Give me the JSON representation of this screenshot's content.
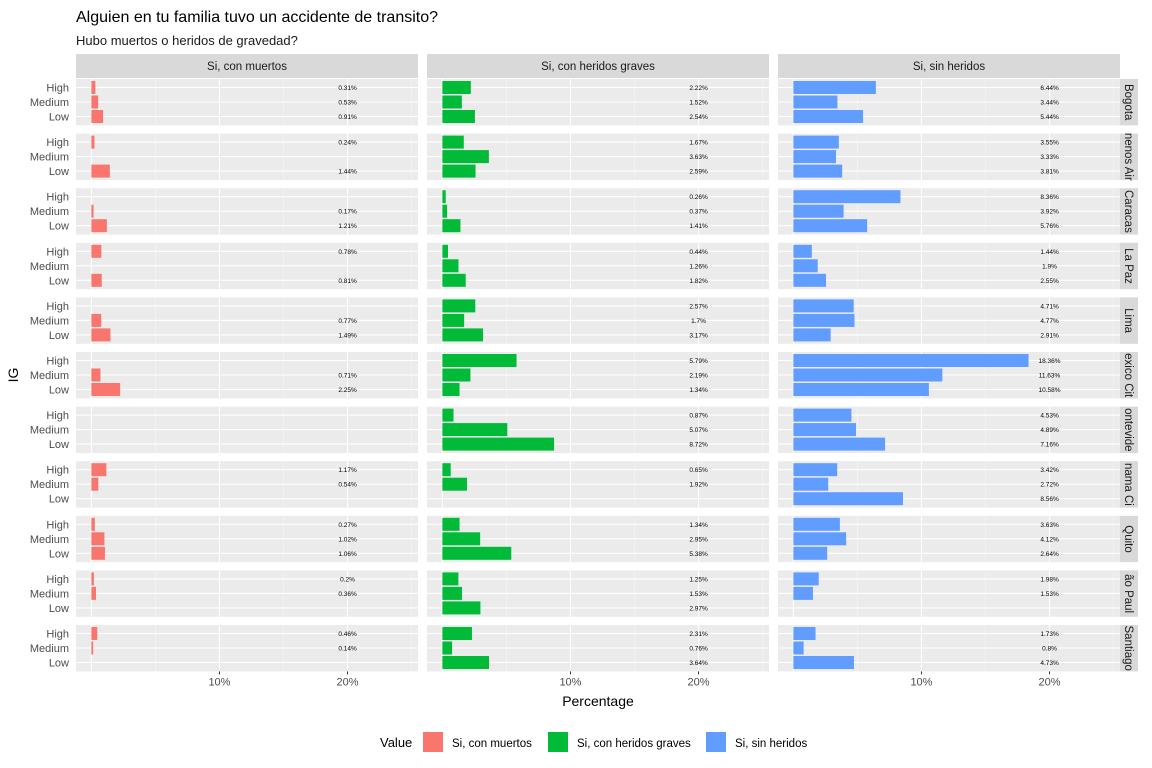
{
  "chart_data": {
    "type": "bar",
    "orientation": "horizontal",
    "title": "Alguien en tu familia tuvo un accidente de transito?",
    "subtitle": "Hubo muertos o heridos de gravedad?",
    "xlabel": "Percentage",
    "ylabel": "IG",
    "xlim": [
      -1.2,
      25.5
    ],
    "x_ticks": [
      10,
      20
    ],
    "x_tick_labels": [
      "10%",
      "20%"
    ],
    "levels": [
      "High",
      "Medium",
      "Low"
    ],
    "column_facets": [
      "Si, con muertos",
      "Si, con heridos graves",
      "Si, sin heridos"
    ],
    "colors": [
      "#F8766D",
      "#00BA38",
      "#619CFF"
    ],
    "legend_title": "Value",
    "legend": [
      "Si, con muertos",
      "Si, con heridos graves",
      "Si, sin heridos"
    ],
    "cities": [
      {
        "name": "Bogota",
        "display": "Bogota",
        "values": [
          [
            0.31,
            0.53,
            0.91
          ],
          [
            2.22,
            1.52,
            2.54
          ],
          [
            6.44,
            3.44,
            5.44
          ]
        ],
        "labels": [
          [
            "0.31%",
            "0.53%",
            "0.91%"
          ],
          [
            "2.22%",
            "1.52%",
            "2.54%"
          ],
          [
            "6.44%",
            "3.44%",
            "5.44%"
          ]
        ]
      },
      {
        "name": "Buenos Aires",
        "display": "nenos Air",
        "values": [
          [
            0.24,
            null,
            1.44
          ],
          [
            1.67,
            3.63,
            2.59
          ],
          [
            3.55,
            3.33,
            3.81
          ]
        ],
        "labels": [
          [
            "0.24%",
            null,
            "1.44%"
          ],
          [
            "1.67%",
            "3.63%",
            "2.59%"
          ],
          [
            "3.55%",
            "3.33%",
            "3.81%"
          ]
        ]
      },
      {
        "name": "Caracas",
        "display": "Caracas",
        "values": [
          [
            null,
            0.17,
            1.21
          ],
          [
            0.26,
            0.37,
            1.41
          ],
          [
            8.36,
            3.92,
            5.76
          ]
        ],
        "labels": [
          [
            null,
            "0.17%",
            "1.21%"
          ],
          [
            "0.26%",
            "0.37%",
            "1.41%"
          ],
          [
            "8.36%",
            "3.92%",
            "5.76%"
          ]
        ]
      },
      {
        "name": "La Paz",
        "display": "La Paz",
        "values": [
          [
            0.78,
            null,
            0.81
          ],
          [
            0.44,
            1.26,
            1.82
          ],
          [
            1.44,
            1.9,
            2.55
          ]
        ],
        "labels": [
          [
            "0.78%",
            null,
            "0.81%"
          ],
          [
            "0.44%",
            "1.26%",
            "1.82%"
          ],
          [
            "1.44%",
            "1.9%",
            "2.55%"
          ]
        ]
      },
      {
        "name": "Lima",
        "display": "Lima",
        "values": [
          [
            null,
            0.77,
            1.49
          ],
          [
            2.57,
            1.7,
            3.17
          ],
          [
            4.71,
            4.77,
            2.91
          ]
        ],
        "labels": [
          [
            null,
            "0.77%",
            "1.49%"
          ],
          [
            "2.57%",
            "1.7%",
            "3.17%"
          ],
          [
            "4.71%",
            "4.77%",
            "2.91%"
          ]
        ]
      },
      {
        "name": "Mexico City",
        "display": "exico Cit",
        "values": [
          [
            null,
            0.71,
            2.25
          ],
          [
            5.79,
            2.19,
            1.34
          ],
          [
            18.36,
            11.63,
            10.58
          ]
        ],
        "labels": [
          [
            null,
            "0.71%",
            "2.25%"
          ],
          [
            "5.79%",
            "2.19%",
            "1.34%"
          ],
          [
            "18.36%",
            "11.63%",
            "10.58%"
          ]
        ]
      },
      {
        "name": "Montevideo",
        "display": "ontevide",
        "values": [
          [
            null,
            null,
            null
          ],
          [
            0.87,
            5.07,
            8.72
          ],
          [
            4.53,
            4.89,
            7.16
          ]
        ],
        "labels": [
          [
            null,
            null,
            null
          ],
          [
            "0.87%",
            "5.07%",
            "8.72%"
          ],
          [
            "4.53%",
            "4.89%",
            "7.16%"
          ]
        ]
      },
      {
        "name": "Panama City",
        "display": "nama Ci",
        "values": [
          [
            1.17,
            0.54,
            null
          ],
          [
            0.65,
            1.92,
            null
          ],
          [
            3.42,
            2.72,
            8.56
          ]
        ],
        "labels": [
          [
            "1.17%",
            "0.54%",
            null
          ],
          [
            "0.65%",
            "1.92%",
            null
          ],
          [
            "3.42%",
            "2.72%",
            "8.56%"
          ]
        ]
      },
      {
        "name": "Quito",
        "display": "Quito",
        "values": [
          [
            0.27,
            1.02,
            1.06
          ],
          [
            1.34,
            2.95,
            5.38
          ],
          [
            3.63,
            4.12,
            2.64
          ]
        ],
        "labels": [
          [
            "0.27%",
            "1.02%",
            "1.06%"
          ],
          [
            "1.34%",
            "2.95%",
            "5.38%"
          ],
          [
            "3.63%",
            "4.12%",
            "2.64%"
          ]
        ]
      },
      {
        "name": "Sao Paulo",
        "display": "ão Paul",
        "values": [
          [
            0.2,
            0.36,
            null
          ],
          [
            1.25,
            1.53,
            2.97
          ],
          [
            1.98,
            1.53,
            null
          ]
        ],
        "labels": [
          [
            "0.2%",
            "0.36%",
            null
          ],
          [
            "1.25%",
            "1.53%",
            "2.97%"
          ],
          [
            "1.98%",
            "1.53%",
            null
          ]
        ]
      },
      {
        "name": "Santiago",
        "display": "Santiago",
        "values": [
          [
            0.46,
            0.14,
            null
          ],
          [
            2.31,
            0.76,
            3.64
          ],
          [
            1.73,
            0.8,
            4.73
          ]
        ],
        "labels": [
          [
            "0.46%",
            "0.14%",
            null
          ],
          [
            "2.31%",
            "0.76%",
            "3.64%"
          ],
          [
            "1.73%",
            "0.8%",
            "4.73%"
          ]
        ]
      }
    ]
  }
}
